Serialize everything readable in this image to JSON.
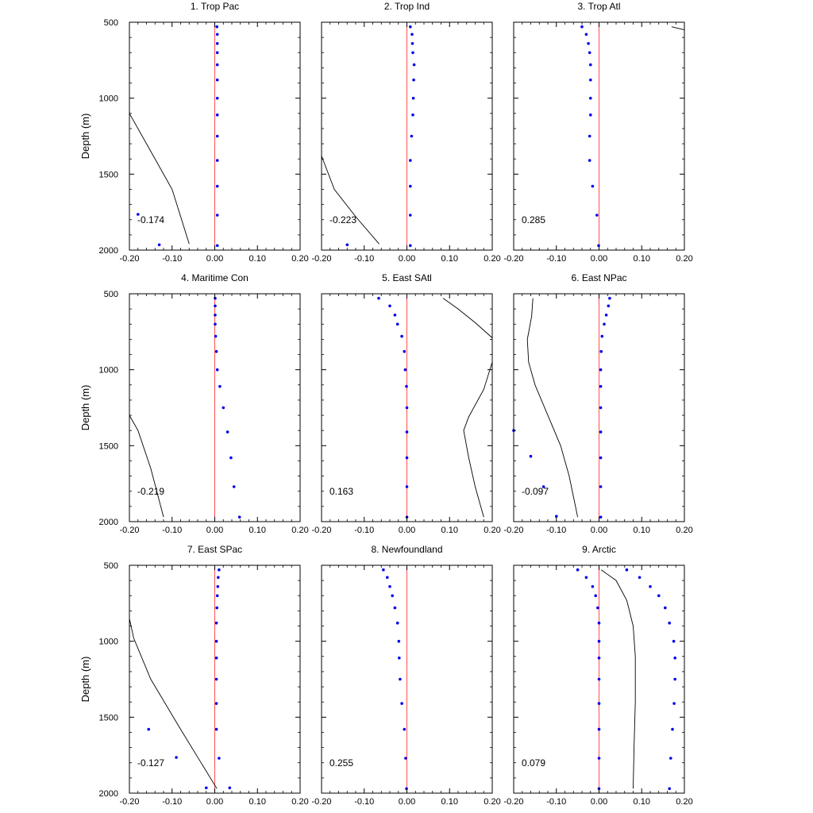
{
  "colors": {
    "dots": "#0000ee",
    "zero_line": "#ff5050",
    "curve": "#000000"
  },
  "ylabel": "Depth (m)",
  "xlim": [
    -0.2,
    0.2
  ],
  "ylim": [
    500,
    2000
  ],
  "xticks": [
    "-0.20",
    "-0.10",
    "0.00",
    "0.10",
    "0.20"
  ],
  "yticks": [
    "500",
    "1000",
    "1500",
    "2000"
  ],
  "chart_data": [
    {
      "type": "scatter",
      "title": "1. Trop Pac",
      "value_label": "-0.174",
      "dots": [
        [
          0.005,
          530
        ],
        [
          0.006,
          580
        ],
        [
          0.006,
          640
        ],
        [
          0.006,
          700
        ],
        [
          0.006,
          780
        ],
        [
          0.006,
          880
        ],
        [
          0.006,
          1000
        ],
        [
          0.006,
          1110
        ],
        [
          0.006,
          1250
        ],
        [
          0.006,
          1410
        ],
        [
          0.006,
          1580
        ],
        [
          0.006,
          1770
        ],
        [
          0.006,
          1970
        ],
        [
          -0.18,
          1765
        ],
        [
          -0.13,
          1965
        ]
      ],
      "curve": [
        [
          -0.2,
          1100
        ],
        [
          -0.15,
          1350
        ],
        [
          -0.1,
          1600
        ],
        [
          -0.06,
          1960
        ]
      ]
    },
    {
      "type": "scatter",
      "title": "2. Trop Ind",
      "value_label": "-0.223",
      "dots": [
        [
          0.008,
          530
        ],
        [
          0.012,
          580
        ],
        [
          0.013,
          640
        ],
        [
          0.014,
          700
        ],
        [
          0.017,
          780
        ],
        [
          0.016,
          880
        ],
        [
          0.015,
          1000
        ],
        [
          0.014,
          1110
        ],
        [
          0.011,
          1250
        ],
        [
          0.008,
          1410
        ],
        [
          0.008,
          1580
        ],
        [
          0.008,
          1770
        ],
        [
          0.008,
          1970
        ],
        [
          -0.14,
          1965
        ]
      ],
      "curve": [
        [
          -0.2,
          1380
        ],
        [
          -0.17,
          1600
        ],
        [
          -0.12,
          1780
        ],
        [
          -0.065,
          1960
        ]
      ]
    },
    {
      "type": "scatter",
      "title": "3. Trop Atl",
      "value_label": "0.285",
      "dots": [
        [
          -0.04,
          530
        ],
        [
          -0.03,
          580
        ],
        [
          -0.025,
          640
        ],
        [
          -0.022,
          700
        ],
        [
          -0.02,
          780
        ],
        [
          -0.02,
          880
        ],
        [
          -0.02,
          1000
        ],
        [
          -0.02,
          1110
        ],
        [
          -0.022,
          1250
        ],
        [
          -0.022,
          1410
        ],
        [
          -0.015,
          1580
        ],
        [
          -0.005,
          1770
        ],
        [
          -0.001,
          1970
        ]
      ],
      "curve": [
        [
          0.17,
          530
        ],
        [
          0.2,
          550
        ]
      ]
    },
    {
      "type": "scatter",
      "title": "4. Maritime Con",
      "value_label": "-0.219",
      "dots": [
        [
          0.001,
          530
        ],
        [
          0.001,
          580
        ],
        [
          0.001,
          640
        ],
        [
          0.001,
          700
        ],
        [
          0.002,
          780
        ],
        [
          0.004,
          880
        ],
        [
          0.006,
          1000
        ],
        [
          0.012,
          1110
        ],
        [
          0.02,
          1250
        ],
        [
          0.03,
          1410
        ],
        [
          0.038,
          1580
        ],
        [
          0.045,
          1770
        ],
        [
          0.058,
          1970
        ]
      ],
      "curve": [
        [
          -0.2,
          1300
        ],
        [
          -0.18,
          1400
        ],
        [
          -0.15,
          1650
        ],
        [
          -0.12,
          1970
        ]
      ]
    },
    {
      "type": "scatter",
      "title": "5. East SAtl",
      "value_label": "0.163",
      "dots": [
        [
          -0.066,
          530
        ],
        [
          -0.04,
          580
        ],
        [
          -0.028,
          640
        ],
        [
          -0.022,
          700
        ],
        [
          -0.012,
          780
        ],
        [
          -0.006,
          880
        ],
        [
          -0.004,
          1000
        ],
        [
          -0.001,
          1110
        ],
        [
          0.0,
          1250
        ],
        [
          0.0,
          1410
        ],
        [
          0.0,
          1580
        ],
        [
          0.0,
          1770
        ],
        [
          0.0,
          1970
        ]
      ],
      "curve": [
        [
          0.085,
          530
        ],
        [
          0.12,
          600
        ],
        [
          0.16,
          690
        ],
        [
          0.2,
          790
        ],
        [
          0.2,
          950
        ],
        [
          0.18,
          1130
        ],
        [
          0.145,
          1310
        ],
        [
          0.133,
          1400
        ],
        [
          0.145,
          1580
        ],
        [
          0.16,
          1770
        ],
        [
          0.18,
          1970
        ]
      ]
    },
    {
      "type": "scatter",
      "title": "6. East NPac",
      "value_label": "-0.097",
      "dots": [
        [
          0.025,
          530
        ],
        [
          0.022,
          580
        ],
        [
          0.017,
          640
        ],
        [
          0.012,
          700
        ],
        [
          0.007,
          780
        ],
        [
          0.005,
          880
        ],
        [
          0.004,
          1000
        ],
        [
          0.004,
          1110
        ],
        [
          0.004,
          1250
        ],
        [
          0.004,
          1410
        ],
        [
          0.004,
          1580
        ],
        [
          0.004,
          1770
        ],
        [
          0.004,
          1970
        ],
        [
          -0.2,
          1400
        ],
        [
          -0.16,
          1570
        ],
        [
          -0.13,
          1770
        ],
        [
          -0.1,
          1965
        ]
      ],
      "curve": [
        [
          -0.155,
          530
        ],
        [
          -0.158,
          650
        ],
        [
          -0.168,
          800
        ],
        [
          -0.165,
          950
        ],
        [
          -0.15,
          1100
        ],
        [
          -0.12,
          1300
        ],
        [
          -0.09,
          1500
        ],
        [
          -0.07,
          1700
        ],
        [
          -0.05,
          1970
        ]
      ]
    },
    {
      "type": "scatter",
      "title": "7. East SPac",
      "value_label": "-0.127",
      "dots": [
        [
          0.01,
          530
        ],
        [
          0.008,
          580
        ],
        [
          0.007,
          640
        ],
        [
          0.006,
          700
        ],
        [
          0.005,
          780
        ],
        [
          0.004,
          880
        ],
        [
          0.004,
          1000
        ],
        [
          0.004,
          1110
        ],
        [
          0.004,
          1250
        ],
        [
          0.004,
          1410
        ],
        [
          0.004,
          1580
        ],
        [
          0.01,
          1770
        ],
        [
          -0.02,
          1965
        ],
        [
          0.035,
          1965
        ],
        [
          -0.155,
          1580
        ],
        [
          -0.09,
          1765
        ]
      ],
      "curve": [
        [
          -0.2,
          850
        ],
        [
          -0.19,
          980
        ],
        [
          -0.15,
          1250
        ],
        [
          -0.08,
          1580
        ],
        [
          0.005,
          1970
        ]
      ]
    },
    {
      "type": "scatter",
      "title": "8. Newfoundland",
      "value_label": "0.255",
      "dots": [
        [
          -0.055,
          530
        ],
        [
          -0.046,
          580
        ],
        [
          -0.04,
          640
        ],
        [
          -0.034,
          700
        ],
        [
          -0.028,
          780
        ],
        [
          -0.022,
          880
        ],
        [
          -0.019,
          1000
        ],
        [
          -0.018,
          1110
        ],
        [
          -0.016,
          1250
        ],
        [
          -0.012,
          1410
        ],
        [
          -0.006,
          1580
        ],
        [
          -0.003,
          1770
        ],
        [
          -0.001,
          1970
        ]
      ]
    },
    {
      "type": "scatter",
      "title": "9. Arctic",
      "value_label": "0.079",
      "dots": [
        [
          -0.05,
          530
        ],
        [
          -0.03,
          580
        ],
        [
          -0.015,
          640
        ],
        [
          -0.008,
          700
        ],
        [
          -0.003,
          780
        ],
        [
          0.0,
          880
        ],
        [
          0.0,
          1000
        ],
        [
          0.0,
          1110
        ],
        [
          0.0,
          1250
        ],
        [
          0.0,
          1410
        ],
        [
          0.0,
          1580
        ],
        [
          0.0,
          1770
        ],
        [
          0.0,
          1970
        ],
        [
          0.065,
          530
        ],
        [
          0.095,
          580
        ],
        [
          0.12,
          640
        ],
        [
          0.14,
          700
        ],
        [
          0.155,
          780
        ],
        [
          0.165,
          880
        ],
        [
          0.175,
          1000
        ],
        [
          0.178,
          1110
        ],
        [
          0.178,
          1250
        ],
        [
          0.176,
          1410
        ],
        [
          0.172,
          1580
        ],
        [
          0.168,
          1770
        ],
        [
          0.165,
          1970
        ]
      ],
      "curve": [
        [
          0.005,
          530
        ],
        [
          0.04,
          600
        ],
        [
          0.065,
          730
        ],
        [
          0.08,
          900
        ],
        [
          0.085,
          1100
        ],
        [
          0.085,
          1400
        ],
        [
          0.082,
          1700
        ],
        [
          0.08,
          1970
        ]
      ]
    }
  ]
}
